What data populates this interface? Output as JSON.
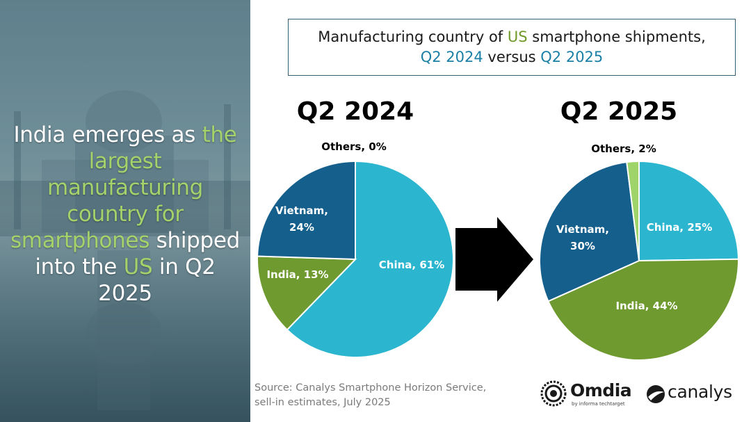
{
  "headline": {
    "part1": "India emerges as ",
    "part2": "the largest manufacturing country for smartphones",
    "part3": " shipped into the ",
    "part4": "US",
    "part5": " in Q2 2025"
  },
  "title": {
    "line1_a": "Manufacturing country of ",
    "line1_b": "US",
    "line1_c": " smartphone shipments,",
    "line2_a": "Q2 2024",
    "line2_b": " versus ",
    "line2_c": "Q2 2025"
  },
  "colors": {
    "china": "#2bb5cf",
    "india": "#6f9a2f",
    "vietnam": "#155f8c",
    "others": "#9fd46a",
    "arrow": "#000000",
    "highlight_green": "#a5d26a"
  },
  "chart_data": [
    {
      "type": "pie",
      "title": "Q2 2024",
      "slices": [
        {
          "label": "China",
          "value": 61,
          "text": "China, 61%",
          "color": "#2bb5cf"
        },
        {
          "label": "India",
          "value": 13,
          "text": "India, 13%",
          "color": "#6f9a2f"
        },
        {
          "label": "Vietnam",
          "value": 24,
          "text": "Vietnam, 24%",
          "color": "#155f8c"
        },
        {
          "label": "Others",
          "value": 0,
          "text": "Others, 0%",
          "color": "#9fd46a"
        }
      ]
    },
    {
      "type": "pie",
      "title": "Q2 2025",
      "slices": [
        {
          "label": "China",
          "value": 25,
          "text": "China, 25%",
          "color": "#2bb5cf"
        },
        {
          "label": "India",
          "value": 44,
          "text": "India, 44%",
          "color": "#6f9a2f"
        },
        {
          "label": "Vietnam",
          "value": 30,
          "text": "Vietnam, 30%",
          "color": "#155f8c"
        },
        {
          "label": "Others",
          "value": 2,
          "text": "Others, 2%",
          "color": "#9fd46a"
        }
      ]
    }
  ],
  "source": {
    "line1": "Source: Canalys Smartphone Horizon Service,",
    "line2": "sell-in estimates, July 2025"
  },
  "logos": {
    "omdia": "Omdia",
    "omdia_sub": "by informa techtarget",
    "canalys": "canalys"
  }
}
